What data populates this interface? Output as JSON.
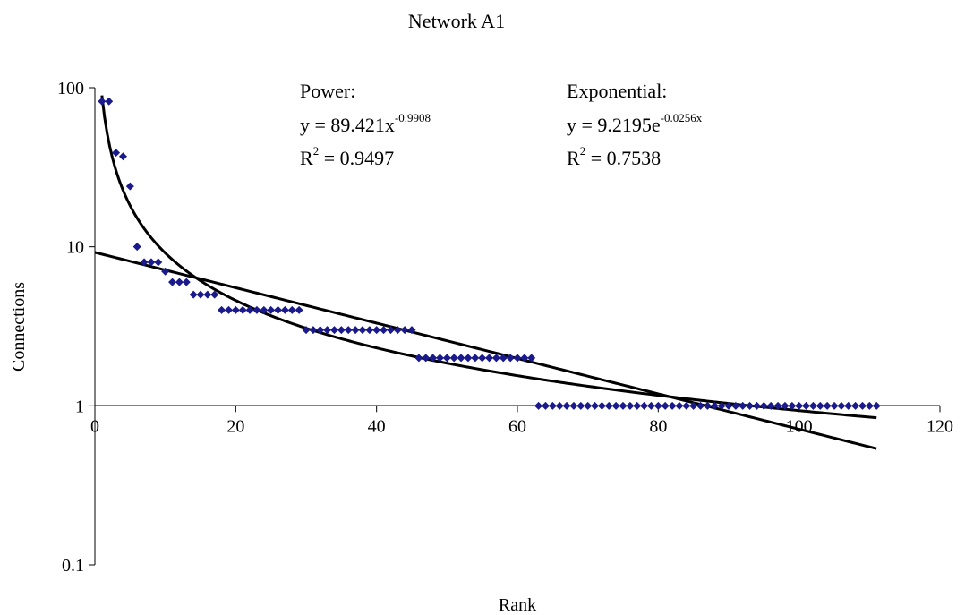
{
  "chart_data": {
    "type": "scatter",
    "title": "Network A1",
    "xlabel": "Rank",
    "ylabel": "Connections",
    "x_range": [
      0,
      120
    ],
    "y_range": [
      0.1,
      100
    ],
    "y_scale": "log",
    "x_ticks": [
      "0",
      "20",
      "40",
      "60",
      "80",
      "100",
      "120"
    ],
    "y_ticks": [
      "0.1",
      "1",
      "10",
      "100"
    ],
    "grid": false,
    "legend": "none",
    "marker_color": "#1a1a8c",
    "trend_color": "#000000",
    "series": [
      {
        "x": [
          1,
          2,
          3,
          4,
          5,
          6,
          7,
          8,
          9,
          10,
          11,
          12,
          13,
          14,
          15,
          16,
          17,
          18,
          19,
          20,
          21,
          22,
          23,
          24,
          25,
          26,
          27,
          28,
          29,
          30,
          31,
          32,
          33,
          34,
          35,
          36,
          37,
          38,
          39,
          40,
          41,
          42,
          43,
          44,
          45,
          46,
          47,
          48,
          49,
          50,
          51,
          52,
          53,
          54,
          55,
          56,
          57,
          58,
          59,
          60,
          61,
          62,
          63,
          64,
          65,
          66,
          67,
          68,
          69,
          70,
          71,
          72,
          73,
          74,
          75,
          76,
          77,
          78,
          79,
          80,
          81,
          82,
          83,
          84,
          85,
          86,
          87,
          88,
          89,
          90,
          91,
          92,
          93,
          94,
          95,
          96,
          97,
          98,
          99,
          100,
          101,
          102,
          103,
          104,
          105,
          106,
          107,
          108,
          109,
          110,
          111
        ],
        "y": [
          82,
          82,
          39,
          37,
          24,
          10,
          8,
          8,
          8,
          7,
          6,
          6,
          6,
          5,
          5,
          5,
          5,
          4,
          4,
          4,
          4,
          4,
          4,
          4,
          4,
          4,
          4,
          4,
          4,
          3,
          3,
          3,
          3,
          3,
          3,
          3,
          3,
          3,
          3,
          3,
          3,
          3,
          3,
          3,
          3,
          2,
          2,
          2,
          2,
          2,
          2,
          2,
          2,
          2,
          2,
          2,
          2,
          2,
          2,
          2,
          2,
          2,
          1,
          1,
          1,
          1,
          1,
          1,
          1,
          1,
          1,
          1,
          1,
          1,
          1,
          1,
          1,
          1,
          1,
          1,
          1,
          1,
          1,
          1,
          1,
          1,
          1,
          1,
          1,
          1,
          1,
          1,
          1,
          1,
          1,
          1,
          1,
          1,
          1,
          1,
          1,
          1,
          1,
          1,
          1,
          1,
          1,
          1,
          1,
          1,
          1
        ]
      }
    ],
    "trendlines": [
      {
        "kind": "power",
        "coef": 89.421,
        "exp": -0.9908,
        "x_range": [
          1,
          111
        ]
      },
      {
        "kind": "exponential",
        "coef": 9.2195,
        "rate": -0.0256,
        "x_range": [
          0,
          111
        ]
      }
    ],
    "annotations": {
      "power": {
        "title": "Power:",
        "eq_base": "y = 89.421x",
        "eq_exp": "-0.9908",
        "r2_pre": "R",
        "r2_sup": "2",
        "r2_val": " = 0.9497"
      },
      "exponential": {
        "title": "Exponential:",
        "eq_base": "y = 9.2195e",
        "eq_exp": "-0.0256x",
        "r2_pre": "R",
        "r2_sup": "2",
        "r2_val": " = 0.7538"
      }
    }
  }
}
